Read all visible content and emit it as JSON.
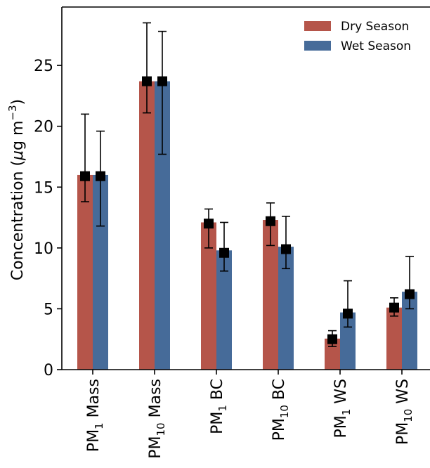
{
  "chart_data": {
    "type": "bar",
    "categories": [
      "PM₁ Mass",
      "PM₁₀ Mass",
      "PM₁ BC",
      "PM₁₀ BC",
      "PM₁ WS",
      "PM₁₀ WS"
    ],
    "category_parts": [
      {
        "base": "PM",
        "sub": "1",
        "rest": " Mass"
      },
      {
        "base": "PM",
        "sub": "10",
        "rest": " Mass"
      },
      {
        "base": "PM",
        "sub": "1",
        "rest": " BC"
      },
      {
        "base": "PM",
        "sub": "10",
        "rest": " BC"
      },
      {
        "base": "PM",
        "sub": "1",
        "rest": " WS"
      },
      {
        "base": "PM",
        "sub": "10",
        "rest": " WS"
      }
    ],
    "series": [
      {
        "name": "Dry Season",
        "color": "#b5554a",
        "values": [
          16.0,
          23.7,
          12.1,
          12.3,
          2.55,
          5.1
        ],
        "markers": [
          15.9,
          23.7,
          12.0,
          12.2,
          2.5,
          5.1
        ],
        "err_low": [
          13.8,
          21.1,
          10.0,
          10.2,
          1.9,
          4.4
        ],
        "err_high": [
          21.0,
          28.5,
          13.2,
          13.7,
          3.2,
          5.9
        ]
      },
      {
        "name": "Wet Season",
        "color": "#466b99",
        "values": [
          16.0,
          23.7,
          9.8,
          10.1,
          4.7,
          6.4
        ],
        "markers": [
          15.9,
          23.7,
          9.6,
          9.9,
          4.6,
          6.2
        ],
        "err_low": [
          11.8,
          17.7,
          8.1,
          8.3,
          3.5,
          5.0
        ],
        "err_high": [
          19.6,
          27.8,
          12.1,
          12.6,
          7.3,
          9.3
        ]
      }
    ],
    "ylabel": {
      "pre": "Concentration (",
      "mu": "μ",
      "g": "g m",
      "sup": "−3",
      "post": ")"
    },
    "yticks": [
      "0",
      "5",
      "10",
      "15",
      "20",
      "25"
    ],
    "ylim": [
      0,
      29.8
    ],
    "legend_position": "top-right",
    "grid": false
  }
}
